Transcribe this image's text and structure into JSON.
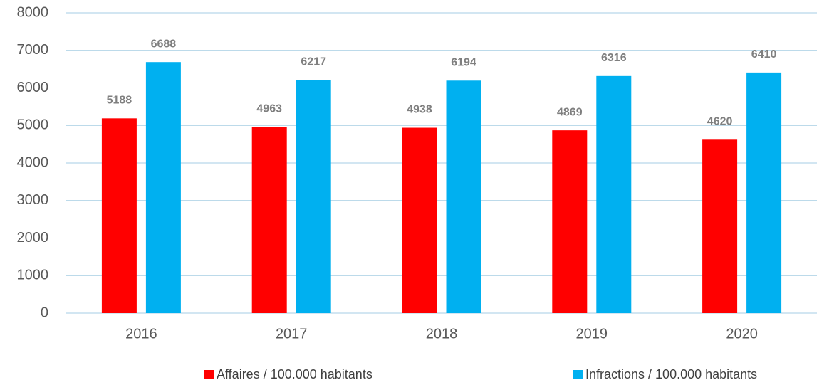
{
  "chart_data": {
    "type": "bar",
    "categories": [
      "2016",
      "2017",
      "2018",
      "2019",
      "2020"
    ],
    "series": [
      {
        "name": "Affaires / 100.000 habitants",
        "color": "#ff0000",
        "values": [
          5188,
          4963,
          4938,
          4869,
          4620
        ]
      },
      {
        "name": "Infractions / 100.000 habitants",
        "color": "#00b0f0",
        "values": [
          6688,
          6217,
          6194,
          6316,
          6410
        ]
      }
    ],
    "ylim": [
      0,
      8000
    ],
    "yticks": [
      0,
      1000,
      2000,
      3000,
      4000,
      5000,
      6000,
      7000,
      8000
    ],
    "grid": true,
    "legend": "bottom"
  }
}
